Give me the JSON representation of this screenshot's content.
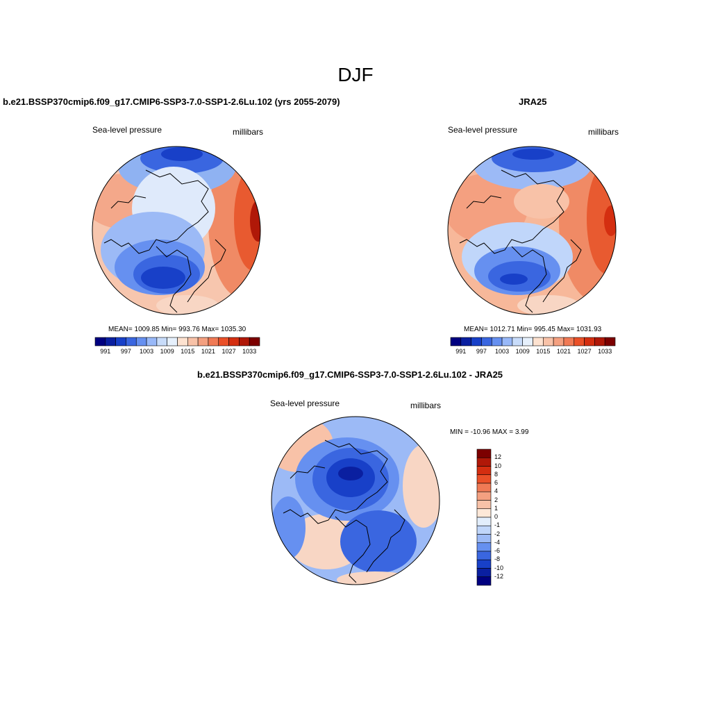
{
  "figure": {
    "season": "DJF",
    "panels": [
      {
        "title": "b.e21.BSSP370cmip6.f09_g17.CMIP6-SSP3-7.0-SSP1-2.6Lu.102 (yrs 2055-2079)",
        "left_label": "Sea-level pressure",
        "right_label": "millibars",
        "stats": "MEAN= 1009.85  Min= 993.76  Max= 1035.30"
      },
      {
        "title": "JRA25",
        "left_label": "Sea-level pressure",
        "right_label": "millibars",
        "stats": "MEAN= 1012.71  Min= 995.45  Max= 1031.93"
      },
      {
        "title": "b.e21.BSSP370cmip6.f09_g17.CMIP6-SSP3-7.0-SSP1-2.6Lu.102 - JRA25",
        "left_label": "Sea-level pressure",
        "right_label": "millibars",
        "stats": "MIN = -10.96 MAX =   3.99"
      }
    ],
    "abs_colorbar": {
      "labels": [
        "991",
        "997",
        "1003",
        "1009",
        "1015",
        "1021",
        "1027",
        "1033"
      ],
      "colors": [
        "#000080",
        "#0a1fa0",
        "#1840c8",
        "#3a66e0",
        "#6690f0",
        "#98b8f8",
        "#c8dcfa",
        "#e6f0fc",
        "#fde2d0",
        "#f8c2a8",
        "#f4a080",
        "#f07a55",
        "#ea5028",
        "#d42e10",
        "#b01808",
        "#7c0000"
      ]
    },
    "diff_colorbar": {
      "labels": [
        "12",
        "10",
        "8",
        "6",
        "4",
        "2",
        "1",
        "0",
        "-1",
        "-2",
        "-4",
        "-6",
        "-8",
        "-10",
        "-12"
      ],
      "colors": [
        "#7c0000",
        "#b01808",
        "#d42e10",
        "#ea5028",
        "#f07a55",
        "#f4a080",
        "#f8c2a8",
        "#fde8d8",
        "#e2eefc",
        "#c0d6fa",
        "#9cbaf6",
        "#6690f0",
        "#3a66e0",
        "#1840c8",
        "#0a1fa0",
        "#000080"
      ]
    }
  }
}
